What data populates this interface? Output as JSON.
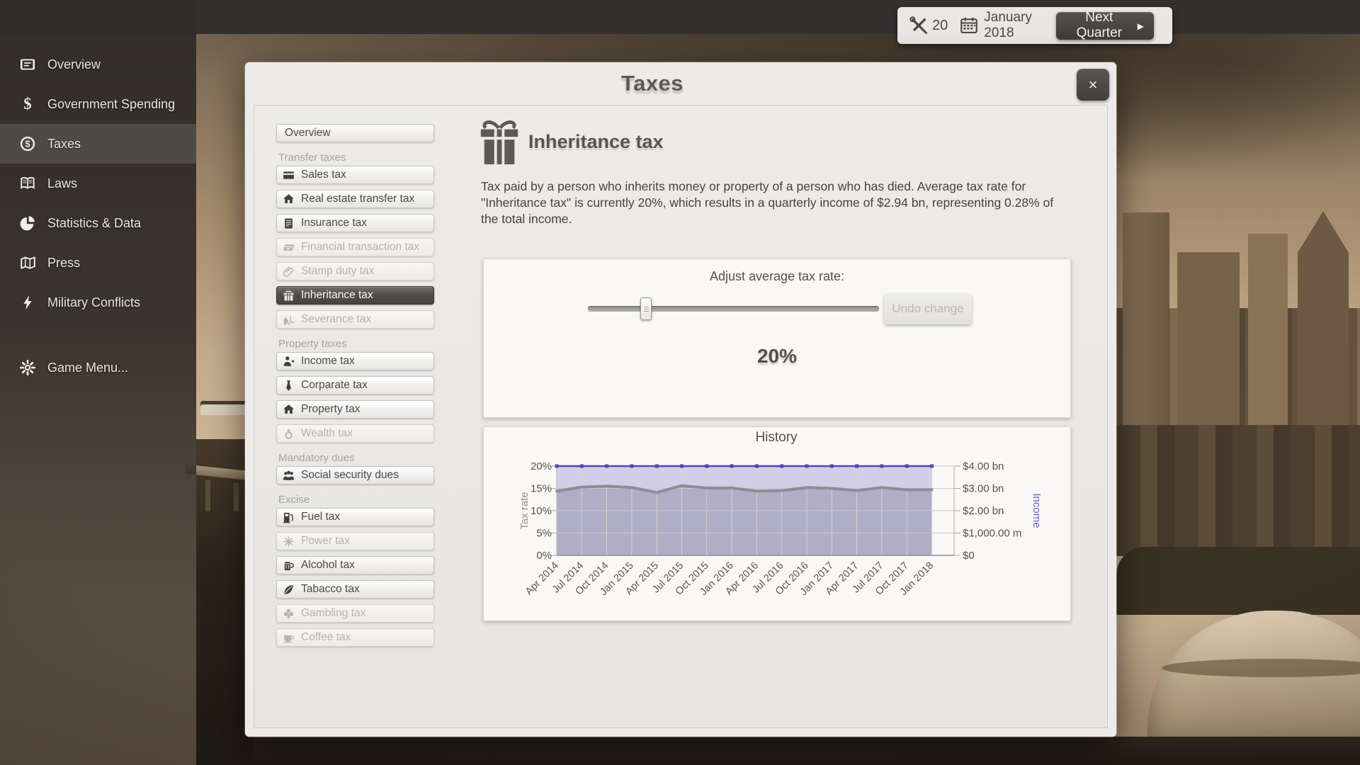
{
  "hud": {
    "tools_count": "20",
    "date": "January 2018",
    "next_quarter_label": "Next Quarter",
    "next_quarter_arrow": "▶"
  },
  "sidebar": {
    "items": [
      {
        "label": "Overview",
        "icon": "scroll-icon"
      },
      {
        "label": "Government Spending",
        "icon": "dollar-icon"
      },
      {
        "label": "Taxes",
        "icon": "coin-icon",
        "selected": true
      },
      {
        "label": "Laws",
        "icon": "book-icon"
      },
      {
        "label": "Statistics & Data",
        "icon": "pie-chart-icon"
      },
      {
        "label": "Press",
        "icon": "map-icon"
      },
      {
        "label": "Military Conflicts",
        "icon": "bolt-icon"
      },
      {
        "label": "Game Menu...",
        "icon": "gear-icon",
        "gap_before": true
      }
    ]
  },
  "dialog": {
    "title": "Taxes",
    "close_label": "×",
    "tax_list": [
      {
        "type": "button",
        "label": "Overview"
      },
      {
        "type": "group",
        "label": "Transfer taxes"
      },
      {
        "type": "button",
        "label": "Sales tax",
        "icon": "credit-card-icon"
      },
      {
        "type": "button",
        "label": "Real estate transfer tax",
        "icon": "house-icon"
      },
      {
        "type": "button",
        "label": "Insurance tax",
        "icon": "ledger-icon"
      },
      {
        "type": "button",
        "label": "Financial transaction tax",
        "icon": "banknotes-icon",
        "disabled": true
      },
      {
        "type": "button",
        "label": "Stamp duty tax",
        "icon": "paperclip-icon",
        "disabled": true
      },
      {
        "type": "button",
        "label": "Inheritance tax",
        "icon": "gift-small-icon",
        "selected": true
      },
      {
        "type": "button",
        "label": "Severance tax",
        "icon": "forklift-icon",
        "disabled": true
      },
      {
        "type": "group",
        "label": "Property taxes"
      },
      {
        "type": "button",
        "label": "Income tax",
        "icon": "person-icon"
      },
      {
        "type": "button",
        "label": "Corparate tax",
        "icon": "tie-icon"
      },
      {
        "type": "button",
        "label": "Property tax",
        "icon": "house-icon"
      },
      {
        "type": "button",
        "label": "Wealth tax",
        "icon": "ring-icon",
        "disabled": true
      },
      {
        "type": "group",
        "label": "Mandatory dues"
      },
      {
        "type": "button",
        "label": "Social security dues",
        "icon": "people-icon"
      },
      {
        "type": "group",
        "label": "Excise"
      },
      {
        "type": "button",
        "label": "Fuel tax",
        "icon": "fuel-pump-icon"
      },
      {
        "type": "button",
        "label": "Power tax",
        "icon": "spark-icon",
        "disabled": true
      },
      {
        "type": "button",
        "label": "Alcohol tax",
        "icon": "beer-mug-icon"
      },
      {
        "type": "button",
        "label": "Tabacco tax",
        "icon": "leaf-icon"
      },
      {
        "type": "button",
        "label": "Gambling tax",
        "icon": "club-icon",
        "disabled": true
      },
      {
        "type": "button",
        "label": "Coffee tax",
        "icon": "coffee-cup-icon",
        "disabled": true
      }
    ],
    "detail": {
      "title": "Inheritance tax",
      "description": "Tax paid by a person who inherits money or property of a person who has died. Average tax rate for \"Inheritance tax\" is currently 20%, which results in a quarterly income of $2.94 bn, representing 0.28% of the total income.",
      "adjust_label": "Adjust average tax rate:",
      "undo_label": "Undo change",
      "current_rate": "20%",
      "slider_value_pct": 20
    }
  },
  "chart_data": {
    "type": "area",
    "title": "History",
    "x": [
      "Apr 2014",
      "Jul 2014",
      "Oct 2014",
      "Jan 2015",
      "Apr 2015",
      "Jul 2015",
      "Oct 2015",
      "Jan 2016",
      "Apr 2016",
      "Jul 2016",
      "Oct 2016",
      "Jan 2017",
      "Apr 2017",
      "Jul 2017",
      "Oct 2017",
      "Jan 2018"
    ],
    "series": [
      {
        "name": "Tax rate",
        "axis": "left",
        "unit": "%",
        "color": "#5246b4",
        "values": [
          20,
          20,
          20,
          20,
          20,
          20,
          20,
          20,
          20,
          20,
          20,
          20,
          20,
          20,
          20,
          20
        ]
      },
      {
        "name": "Income",
        "axis": "right",
        "unit": "$bn",
        "color": "#8e8c96",
        "values": [
          2.88,
          3.06,
          3.1,
          3.04,
          2.82,
          3.12,
          3.02,
          3.02,
          2.88,
          2.9,
          3.04,
          3.0,
          2.9,
          3.04,
          2.94,
          2.94
        ]
      }
    ],
    "left_axis": {
      "label": "Tax rate",
      "ticks": [
        "0%",
        "5%",
        "10%",
        "15%",
        "20%"
      ],
      "range": [
        0,
        20
      ]
    },
    "right_axis": {
      "label": "Income",
      "ticks": [
        "$0",
        "$1,000.00 m",
        "$2.00 bn",
        "$3.00 bn",
        "$4.00 bn"
      ],
      "range": [
        0,
        4
      ]
    },
    "grid": true,
    "legend": "none"
  },
  "colors": {
    "accent_dark": "#4a4745",
    "selected_item_bg": "#4e4a46",
    "tax_rate_line": "#5246b4",
    "income_line": "#8e8c96",
    "income_axis_label": "#6a5fc9",
    "panel_bg": "#f9f8f7"
  }
}
